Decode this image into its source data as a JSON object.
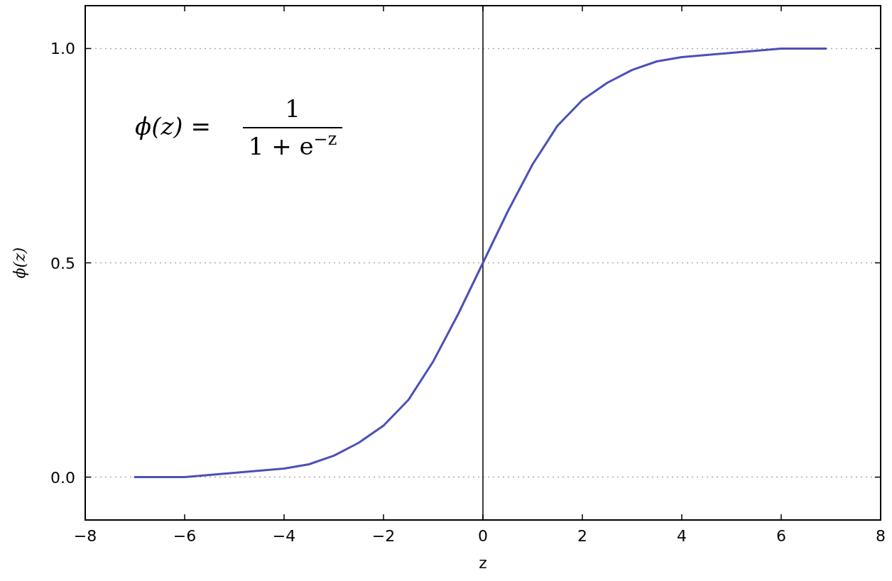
{
  "chart_data": {
    "type": "line",
    "xlabel": "z",
    "ylabel": "ϕ(z)",
    "annotations": [
      "ϕ(z) =",
      "1",
      "1 + e$^{−z}$"
    ],
    "x": [
      -7,
      -6,
      -5,
      -4,
      -3.5,
      -3,
      -2.5,
      -2,
      -1.5,
      -1,
      -0.5,
      0,
      0.5,
      1,
      1.5,
      2,
      2.5,
      3,
      3.5,
      4,
      5,
      6,
      6.9
    ],
    "series": [
      {
        "color": "#4b50b8",
        "values": [
          0.0,
          0.0,
          0.01,
          0.02,
          0.03,
          0.05,
          0.08,
          0.12,
          0.18,
          0.27,
          0.38,
          0.5,
          0.62,
          0.73,
          0.82,
          0.88,
          0.92,
          0.95,
          0.97,
          0.98,
          0.99,
          1.0,
          1.0
        ]
      }
    ],
    "xlim": [
      -8,
      8
    ],
    "ylim": [
      -0.1,
      1.1
    ],
    "xticks": [
      {
        "value": -8,
        "label": "−8"
      },
      {
        "value": -6,
        "label": "−6"
      },
      {
        "value": -4,
        "label": "−4"
      },
      {
        "value": -2,
        "label": "−2"
      },
      0,
      2,
      4,
      6,
      8
    ],
    "yticks": [
      {
        "value": 0,
        "label": "0.0"
      },
      {
        "value": 0.5,
        "label": "0.5"
      },
      {
        "value": 1,
        "label": "1.0"
      }
    ],
    "grid": "y",
    "line_style": "solid",
    "marker": "none",
    "ref_lines": [
      {
        "axis": "x",
        "value": 0,
        "color": "#000000"
      }
    ]
  }
}
